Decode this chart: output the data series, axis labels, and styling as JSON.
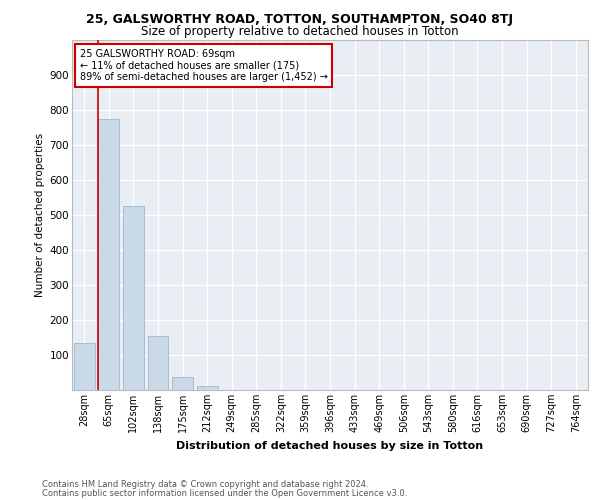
{
  "title1": "25, GALSWORTHY ROAD, TOTTON, SOUTHAMPTON, SO40 8TJ",
  "title2": "Size of property relative to detached houses in Totton",
  "xlabel": "Distribution of detached houses by size in Totton",
  "ylabel": "Number of detached properties",
  "footnote1": "Contains HM Land Registry data © Crown copyright and database right 2024.",
  "footnote2": "Contains public sector information licensed under the Open Government Licence v3.0.",
  "bar_categories": [
    "28sqm",
    "65sqm",
    "102sqm",
    "138sqm",
    "175sqm",
    "212sqm",
    "249sqm",
    "285sqm",
    "322sqm",
    "359sqm",
    "396sqm",
    "433sqm",
    "469sqm",
    "506sqm",
    "543sqm",
    "580sqm",
    "616sqm",
    "653sqm",
    "690sqm",
    "727sqm",
    "764sqm"
  ],
  "bar_values": [
    135,
    775,
    525,
    155,
    38,
    12,
    0,
    0,
    0,
    0,
    0,
    0,
    0,
    0,
    0,
    0,
    0,
    0,
    0,
    0,
    0
  ],
  "bar_color": "#c9d9e8",
  "bar_edgecolor": "#a0b8cc",
  "annotation_title": "25 GALSWORTHY ROAD: 69sqm",
  "annotation_line2": "← 11% of detached houses are smaller (175)",
  "annotation_line3": "89% of semi-detached houses are larger (1,452) →",
  "vline_color": "#cc0000",
  "annotation_box_edgecolor": "#cc0000",
  "ylim": [
    0,
    1000
  ],
  "yticks": [
    0,
    100,
    200,
    300,
    400,
    500,
    600,
    700,
    800,
    900,
    1000
  ],
  "plot_bg_color": "#e8eef4",
  "grid_color": "#ffffff"
}
